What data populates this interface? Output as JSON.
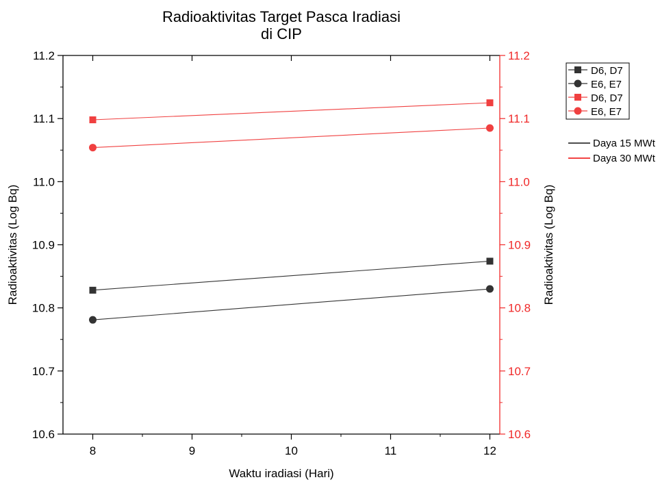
{
  "chart_data": {
    "type": "line",
    "title": [
      "Radioaktivitas Target Pasca Iradiasi",
      "di CIP"
    ],
    "xlabel": "Waktu iradiasi (Hari)",
    "ylabel_left": "Radioaktivitas (Log Bq)",
    "ylabel_right": "Radioaktivitas (Log Bq)",
    "xlim": [
      7.7,
      12.1
    ],
    "ylim": [
      10.6,
      11.2
    ],
    "x_ticks": [
      8,
      9,
      10,
      11,
      12
    ],
    "y_ticks": [
      10.6,
      10.7,
      10.8,
      10.9,
      11.0,
      11.1,
      11.2
    ],
    "grid": false,
    "legend_position": "right",
    "series": [
      {
        "name": "D6, D7",
        "marker": "square",
        "color": "#333333",
        "axis": "left",
        "x": [
          8,
          12
        ],
        "y": [
          10.828,
          10.874
        ]
      },
      {
        "name": "E6, E7",
        "marker": "circle",
        "color": "#333333",
        "axis": "left",
        "x": [
          8,
          12
        ],
        "y": [
          10.781,
          10.83
        ]
      },
      {
        "name": "D6, D7",
        "marker": "square",
        "color": "#f04040",
        "axis": "right",
        "x": [
          8,
          12
        ],
        "y": [
          11.098,
          11.125
        ]
      },
      {
        "name": "E6, E7",
        "marker": "circle",
        "color": "#f04040",
        "axis": "right",
        "x": [
          8,
          12
        ],
        "y": [
          11.054,
          11.085
        ]
      }
    ],
    "line_legend": [
      {
        "name": "Daya 15 MWt",
        "color": "#333333"
      },
      {
        "name": "Daya 30 MWt",
        "color": "#f02828"
      }
    ],
    "colors": {
      "left_axis": "#000000",
      "right_axis": "#f02828"
    }
  }
}
